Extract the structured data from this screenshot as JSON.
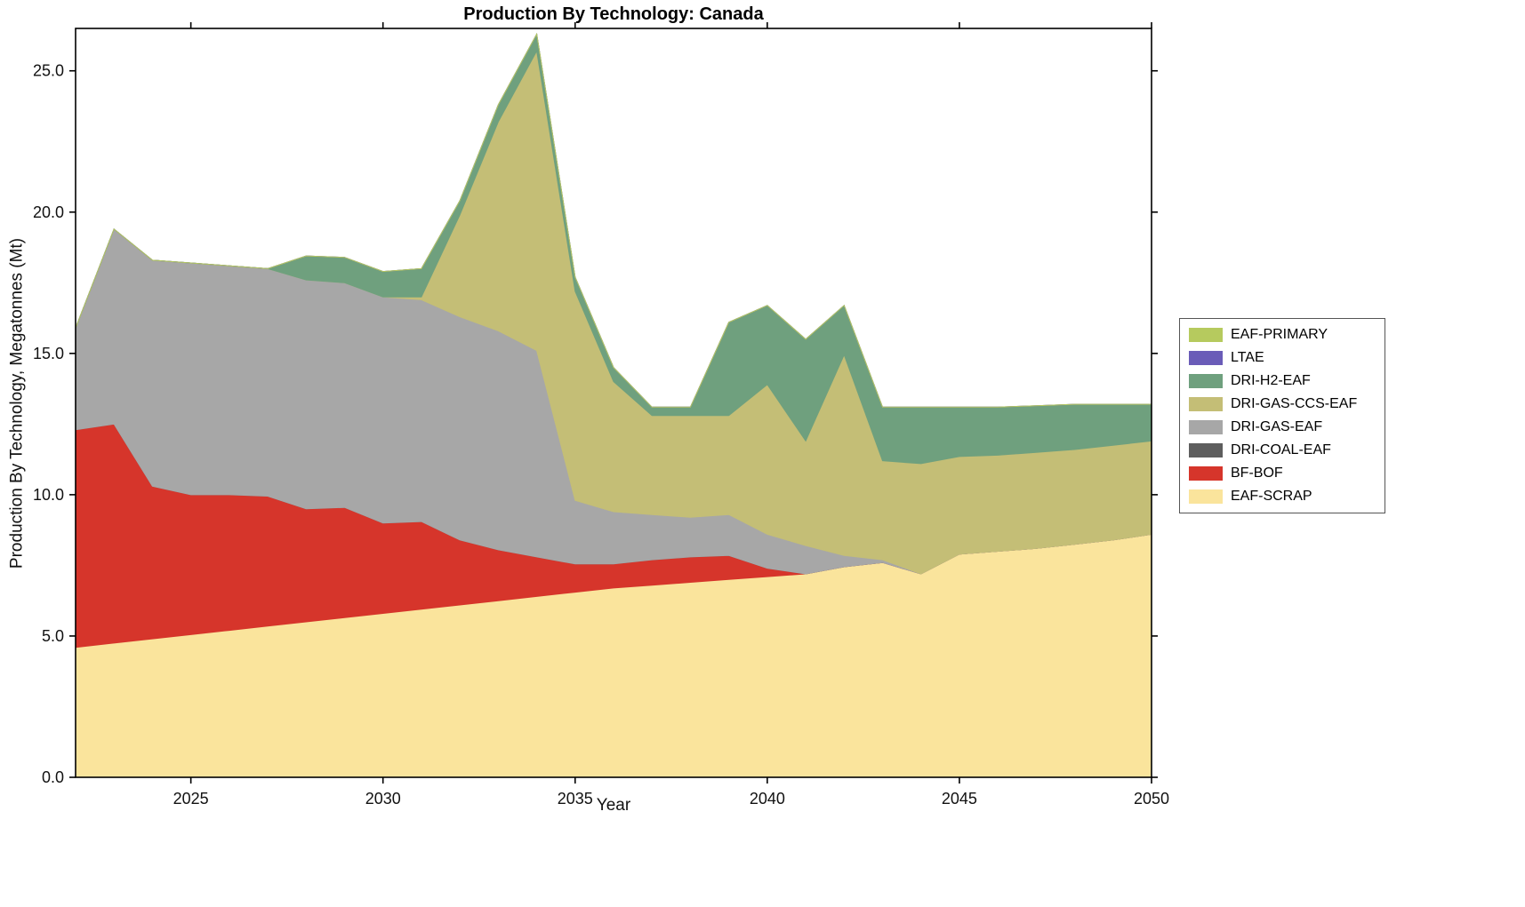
{
  "chart_data": {
    "type": "area",
    "stacked": true,
    "title": "Production By Technology: Canada",
    "xlabel": "Year",
    "ylabel": "Production By Technology, Megatonnes (Mt)",
    "xlim": [
      2022,
      2050
    ],
    "ylim": [
      0,
      26.5
    ],
    "xticks": [
      2025,
      2030,
      2035,
      2040,
      2045,
      2050
    ],
    "yticks": [
      0,
      5,
      10,
      15,
      20,
      25
    ],
    "ytick_labels": [
      "0.0",
      "5.0",
      "10.0",
      "15.0",
      "20.0",
      "25.0"
    ],
    "grid": false,
    "legend_position": "right-outside",
    "years": [
      2022,
      2023,
      2024,
      2025,
      2026,
      2027,
      2028,
      2029,
      2030,
      2031,
      2032,
      2033,
      2034,
      2035,
      2036,
      2037,
      2038,
      2039,
      2040,
      2041,
      2042,
      2043,
      2044,
      2045,
      2046,
      2047,
      2048,
      2049,
      2050
    ],
    "series": [
      {
        "name": "EAF-SCRAP",
        "color": "#fae49c",
        "values": [
          4.6,
          4.75,
          4.9,
          5.05,
          5.2,
          5.35,
          5.5,
          5.65,
          5.8,
          5.95,
          6.1,
          6.25,
          6.4,
          6.55,
          6.7,
          6.8,
          6.9,
          7.0,
          7.1,
          7.2,
          7.45,
          7.6,
          7.2,
          7.9,
          8.0,
          8.1,
          8.25,
          8.4,
          8.6
        ]
      },
      {
        "name": "BF-BOF",
        "color": "#d6352b",
        "values": [
          7.7,
          7.75,
          5.4,
          4.95,
          4.8,
          4.6,
          4.0,
          3.9,
          3.2,
          3.1,
          2.3,
          1.8,
          1.4,
          1.0,
          0.85,
          0.9,
          0.9,
          0.85,
          0.3,
          0,
          0,
          0,
          0,
          0,
          0,
          0,
          0,
          0,
          0
        ]
      },
      {
        "name": "DRI-COAL-EAF",
        "color": "#5e5e5e",
        "values": [
          0,
          0,
          0,
          0,
          0,
          0,
          0,
          0,
          0,
          0,
          0,
          0,
          0,
          0,
          0,
          0,
          0,
          0,
          0,
          0,
          0,
          0,
          0,
          0,
          0,
          0,
          0,
          0,
          0
        ]
      },
      {
        "name": "DRI-GAS-EAF",
        "color": "#a7a7a7",
        "values": [
          3.6,
          6.9,
          8.0,
          8.2,
          8.1,
          8.05,
          8.1,
          7.95,
          8.0,
          7.85,
          7.9,
          7.75,
          7.3,
          2.25,
          1.85,
          1.6,
          1.4,
          1.45,
          1.2,
          1.0,
          0.4,
          0.1,
          0,
          0,
          0,
          0,
          0,
          0,
          0
        ]
      },
      {
        "name": "DRI-GAS-CCS-EAF",
        "color": "#c4be76",
        "values": [
          0,
          0,
          0,
          0,
          0,
          0,
          0,
          0,
          0,
          0.1,
          3.6,
          7.4,
          10.6,
          7.4,
          4.6,
          3.5,
          3.6,
          3.5,
          5.3,
          3.7,
          7.1,
          3.5,
          3.9,
          3.45,
          3.4,
          3.4,
          3.35,
          3.35,
          3.3
        ]
      },
      {
        "name": "DRI-H2-EAF",
        "color": "#6fa07e",
        "values": [
          0,
          0,
          0,
          0,
          0,
          0,
          0.85,
          0.9,
          0.9,
          1.0,
          0.5,
          0.6,
          0.6,
          0.5,
          0.5,
          0.3,
          0.3,
          3.3,
          2.8,
          3.6,
          1.75,
          1.9,
          2.0,
          1.75,
          1.7,
          1.65,
          1.6,
          1.45,
          1.3
        ]
      },
      {
        "name": "LTAE",
        "color": "#6a5cb8",
        "values": [
          0,
          0,
          0,
          0,
          0,
          0,
          0,
          0,
          0,
          0,
          0,
          0,
          0,
          0,
          0,
          0,
          0,
          0,
          0,
          0,
          0,
          0,
          0,
          0,
          0,
          0,
          0,
          0,
          0
        ]
      },
      {
        "name": "EAF-PRIMARY",
        "color": "#b6ca5e",
        "values": [
          0,
          0,
          0,
          0,
          0,
          0,
          0,
          0,
          0,
          0,
          0,
          0,
          0,
          0,
          0,
          0,
          0,
          0,
          0,
          0,
          0,
          0,
          0,
          0,
          0,
          0,
          0,
          0,
          0
        ]
      }
    ]
  }
}
